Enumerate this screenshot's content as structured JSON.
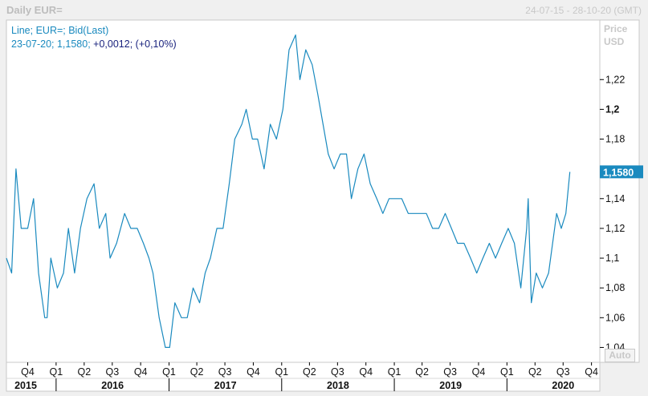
{
  "header": {
    "title": "Daily EUR=",
    "date_range": "24-07-15 - 28-10-20 (GMT)"
  },
  "legend": {
    "line1": "Line; EUR=; Bid(Last)",
    "line2_prefix": "23-07-20; 1,1580; ",
    "line2_change": "+0,0012; (+0,10%)"
  },
  "axis": {
    "price_label": "Price",
    "unit_label": "USD",
    "auto_label": "Auto"
  },
  "chart_data": {
    "type": "line",
    "series": [
      {
        "name": "EUR=",
        "color": "#1a8abf",
        "points": [
          [
            "2015-07-24",
            1.1
          ],
          [
            "2015-08-10",
            1.09
          ],
          [
            "2015-08-24",
            1.16
          ],
          [
            "2015-09-10",
            1.12
          ],
          [
            "2015-10-01",
            1.12
          ],
          [
            "2015-10-20",
            1.14
          ],
          [
            "2015-11-05",
            1.09
          ],
          [
            "2015-11-25",
            1.06
          ],
          [
            "2015-12-03",
            1.06
          ],
          [
            "2015-12-15",
            1.1
          ],
          [
            "2016-01-05",
            1.08
          ],
          [
            "2016-01-25",
            1.09
          ],
          [
            "2016-02-10",
            1.12
          ],
          [
            "2016-03-01",
            1.09
          ],
          [
            "2016-03-20",
            1.12
          ],
          [
            "2016-04-10",
            1.14
          ],
          [
            "2016-05-03",
            1.15
          ],
          [
            "2016-05-20",
            1.12
          ],
          [
            "2016-06-10",
            1.13
          ],
          [
            "2016-06-24",
            1.1
          ],
          [
            "2016-07-15",
            1.11
          ],
          [
            "2016-08-10",
            1.13
          ],
          [
            "2016-08-30",
            1.12
          ],
          [
            "2016-09-20",
            1.12
          ],
          [
            "2016-10-10",
            1.11
          ],
          [
            "2016-10-28",
            1.1
          ],
          [
            "2016-11-10",
            1.09
          ],
          [
            "2016-11-30",
            1.06
          ],
          [
            "2016-12-20",
            1.04
          ],
          [
            "2017-01-03",
            1.04
          ],
          [
            "2017-01-20",
            1.07
          ],
          [
            "2017-02-10",
            1.06
          ],
          [
            "2017-03-01",
            1.06
          ],
          [
            "2017-03-20",
            1.08
          ],
          [
            "2017-04-10",
            1.07
          ],
          [
            "2017-04-28",
            1.09
          ],
          [
            "2017-05-15",
            1.1
          ],
          [
            "2017-06-05",
            1.12
          ],
          [
            "2017-06-25",
            1.12
          ],
          [
            "2017-07-15",
            1.15
          ],
          [
            "2017-08-02",
            1.18
          ],
          [
            "2017-08-25",
            1.19
          ],
          [
            "2017-09-08",
            1.2
          ],
          [
            "2017-09-28",
            1.18
          ],
          [
            "2017-10-15",
            1.18
          ],
          [
            "2017-11-05",
            1.16
          ],
          [
            "2017-11-25",
            1.19
          ],
          [
            "2017-12-15",
            1.18
          ],
          [
            "2018-01-05",
            1.2
          ],
          [
            "2018-01-25",
            1.24
          ],
          [
            "2018-02-15",
            1.25
          ],
          [
            "2018-03-01",
            1.22
          ],
          [
            "2018-03-20",
            1.24
          ],
          [
            "2018-04-10",
            1.23
          ],
          [
            "2018-04-28",
            1.21
          ],
          [
            "2018-05-15",
            1.19
          ],
          [
            "2018-06-01",
            1.17
          ],
          [
            "2018-06-20",
            1.16
          ],
          [
            "2018-07-10",
            1.17
          ],
          [
            "2018-07-30",
            1.17
          ],
          [
            "2018-08-15",
            1.14
          ],
          [
            "2018-09-05",
            1.16
          ],
          [
            "2018-09-25",
            1.17
          ],
          [
            "2018-10-15",
            1.15
          ],
          [
            "2018-11-05",
            1.14
          ],
          [
            "2018-11-25",
            1.13
          ],
          [
            "2018-12-15",
            1.14
          ],
          [
            "2019-01-05",
            1.14
          ],
          [
            "2019-01-25",
            1.14
          ],
          [
            "2019-02-15",
            1.13
          ],
          [
            "2019-03-05",
            1.13
          ],
          [
            "2019-03-25",
            1.13
          ],
          [
            "2019-04-15",
            1.13
          ],
          [
            "2019-05-05",
            1.12
          ],
          [
            "2019-05-25",
            1.12
          ],
          [
            "2019-06-15",
            1.13
          ],
          [
            "2019-07-05",
            1.12
          ],
          [
            "2019-07-25",
            1.11
          ],
          [
            "2019-08-15",
            1.11
          ],
          [
            "2019-09-05",
            1.1
          ],
          [
            "2019-09-25",
            1.09
          ],
          [
            "2019-10-15",
            1.1
          ],
          [
            "2019-11-05",
            1.11
          ],
          [
            "2019-11-25",
            1.1
          ],
          [
            "2019-12-15",
            1.11
          ],
          [
            "2020-01-05",
            1.12
          ],
          [
            "2020-01-25",
            1.11
          ],
          [
            "2020-02-15",
            1.08
          ],
          [
            "2020-03-05",
            1.12
          ],
          [
            "2020-03-10",
            1.14
          ],
          [
            "2020-03-20",
            1.07
          ],
          [
            "2020-04-05",
            1.09
          ],
          [
            "2020-04-25",
            1.08
          ],
          [
            "2020-05-15",
            1.09
          ],
          [
            "2020-05-28",
            1.11
          ],
          [
            "2020-06-10",
            1.13
          ],
          [
            "2020-06-25",
            1.12
          ],
          [
            "2020-07-10",
            1.13
          ],
          [
            "2020-07-23",
            1.158
          ]
        ]
      }
    ],
    "last_value_label": "1,1580",
    "ylim": [
      1.03,
      1.26
    ],
    "y_ticks": [
      {
        "v": 1.22,
        "label": "1,22",
        "bold": false
      },
      {
        "v": 1.2,
        "label": "1,2",
        "bold": true
      },
      {
        "v": 1.18,
        "label": "1,18",
        "bold": false
      },
      {
        "v": 1.14,
        "label": "1,14",
        "bold": false
      },
      {
        "v": 1.12,
        "label": "1,12",
        "bold": false
      },
      {
        "v": 1.1,
        "label": "1,1",
        "bold": false
      },
      {
        "v": 1.08,
        "label": "1,08",
        "bold": false
      },
      {
        "v": 1.06,
        "label": "1,06",
        "bold": false
      },
      {
        "v": 1.04,
        "label": "1,04",
        "bold": false
      }
    ],
    "x_quarters": [
      {
        "date": "2015-10-01",
        "label": "Q4"
      },
      {
        "date": "2016-01-01",
        "label": "Q1"
      },
      {
        "date": "2016-04-01",
        "label": "Q2"
      },
      {
        "date": "2016-07-01",
        "label": "Q3"
      },
      {
        "date": "2016-10-01",
        "label": "Q4"
      },
      {
        "date": "2017-01-01",
        "label": "Q1"
      },
      {
        "date": "2017-04-01",
        "label": "Q2"
      },
      {
        "date": "2017-07-01",
        "label": "Q3"
      },
      {
        "date": "2017-10-01",
        "label": "Q4"
      },
      {
        "date": "2018-01-01",
        "label": "Q1"
      },
      {
        "date": "2018-04-01",
        "label": "Q2"
      },
      {
        "date": "2018-07-01",
        "label": "Q3"
      },
      {
        "date": "2018-10-01",
        "label": "Q4"
      },
      {
        "date": "2019-01-01",
        "label": "Q1"
      },
      {
        "date": "2019-04-01",
        "label": "Q2"
      },
      {
        "date": "2019-07-01",
        "label": "Q3"
      },
      {
        "date": "2019-10-01",
        "label": "Q4"
      },
      {
        "date": "2020-01-01",
        "label": "Q1"
      },
      {
        "date": "2020-04-01",
        "label": "Q2"
      },
      {
        "date": "2020-07-01",
        "label": "Q3"
      },
      {
        "date": "2020-10-01",
        "label": "Q4"
      }
    ],
    "x_years": [
      {
        "date": "2015-07-24",
        "label": "2015"
      },
      {
        "date": "2016-01-01",
        "label": "2016"
      },
      {
        "date": "2017-01-01",
        "label": "2017"
      },
      {
        "date": "2018-01-01",
        "label": "2018"
      },
      {
        "date": "2019-01-01",
        "label": "2019"
      },
      {
        "date": "2020-01-01",
        "label": "2020"
      }
    ],
    "x_range": [
      "2015-07-24",
      "2020-10-28"
    ],
    "grid": false
  }
}
